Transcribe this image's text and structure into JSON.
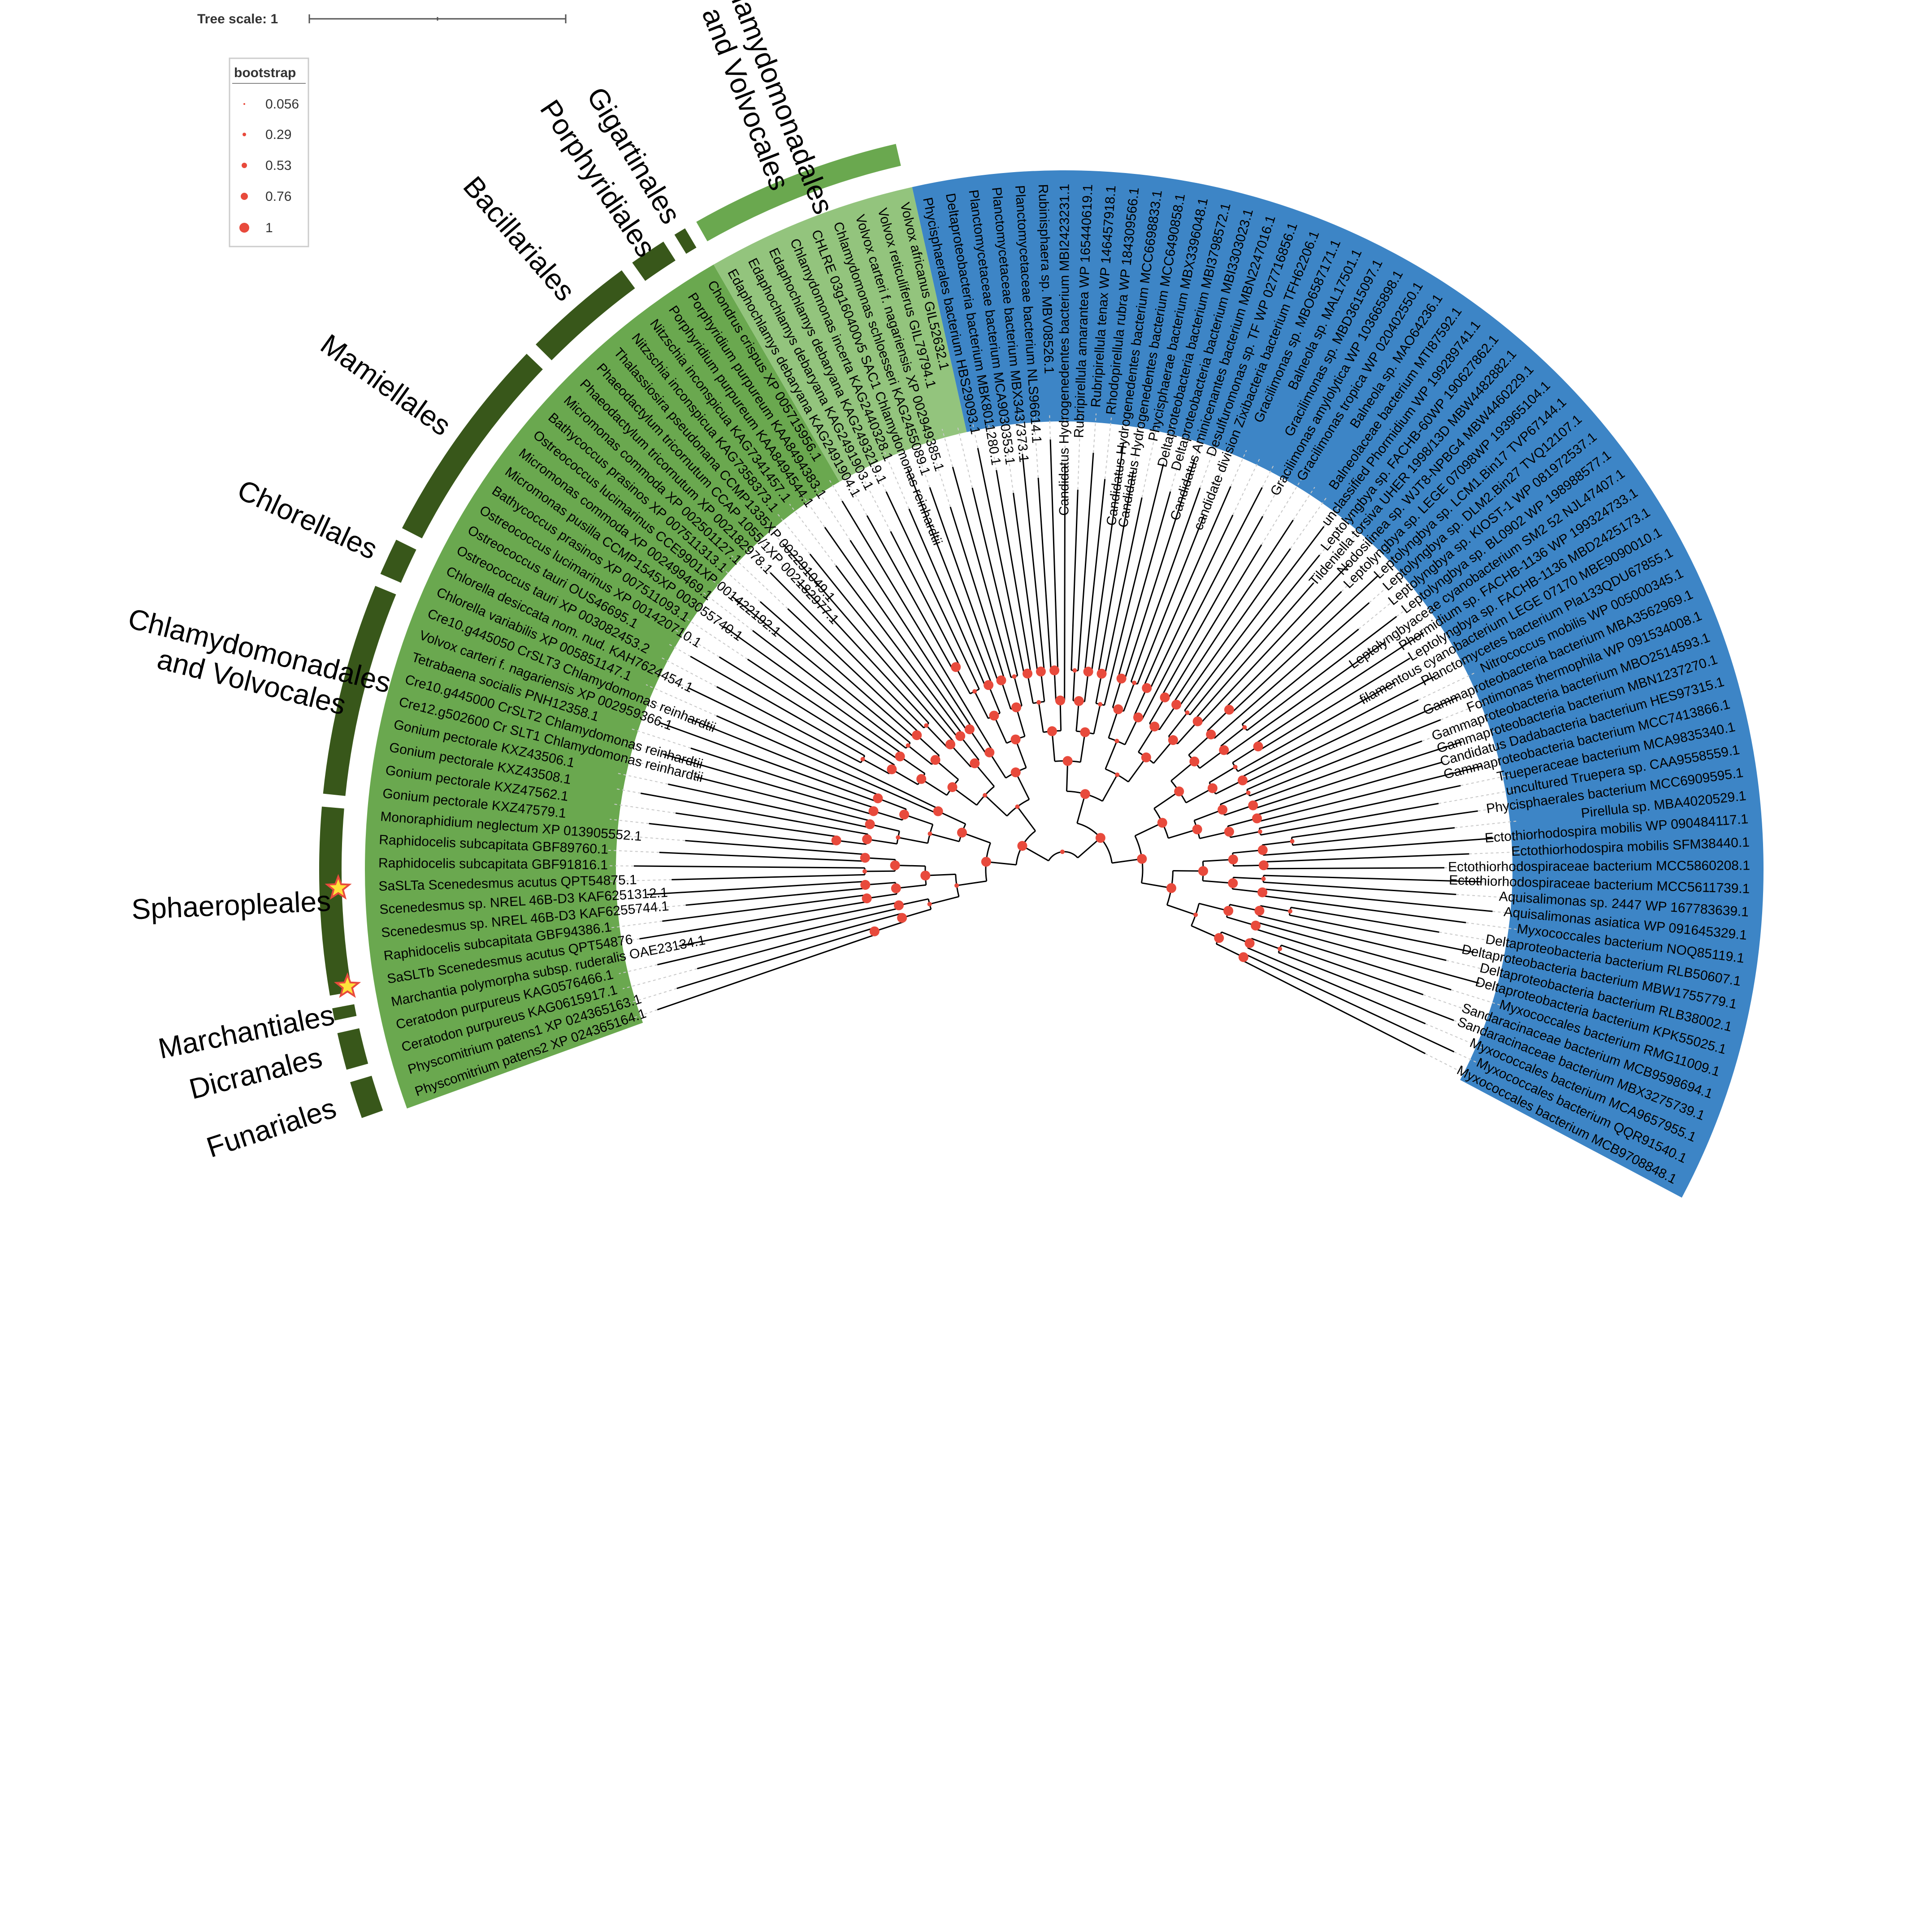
{
  "tree_scale": {
    "label": "Tree scale: 1"
  },
  "legend": {
    "title": "bootstrap",
    "items": [
      {
        "label": "0.056",
        "value": 0.056
      },
      {
        "label": "0.29",
        "value": 0.29
      },
      {
        "label": "0.53",
        "value": 0.53
      },
      {
        "label": "0.76",
        "value": 0.76
      },
      {
        "label": "1",
        "value": 1
      }
    ]
  },
  "colors": {
    "bacteria_band": "#3d85c6",
    "green_band": "#6aa84f",
    "light_green_band": "#93c47d",
    "order_ring_dark": "#38571a",
    "order_ring_light": "#6aa84f",
    "branch": "#000000",
    "bootstrap_dot": "#e84a3c",
    "star_fill": "#ffe23a",
    "star_stroke": "#e84a3c"
  },
  "leaves": [
    "Physcomitrium patens2 XP 024365164.1",
    "Physcomitrium patens1 XP 024365163.1",
    "Ceratodon purpureus KAG0615917.1",
    "Ceratodon purpureus KAG0576466.1",
    "Marchantia polymorpha subsp. ruderalis OAE23134.1",
    "SaSLTb Scenedesmus acutus QPT54876",
    "Raphidocelis subcapitata GBF94386.1",
    "Scenedesmus sp. NREL 46B-D3 KAF6255744.1",
    "Scenedesmus sp. NREL 46B-D3 KAF6251312.1",
    "SaSLTa Scenedesmus acutus QPT54875.1",
    "Raphidocelis subcapitata GBF91816.1",
    "Raphidocelis subcapitata GBF89760.1",
    "Monoraphidium neglectum XP 013905552.1",
    "Gonium pectorale KXZ47579.1",
    "Gonium pectorale KXZ47562.1",
    "Gonium pectorale KXZ43508.1",
    "Gonium pectorale KXZ43506.1",
    "Cre12.g502600 Cr SLT1 Chlamydomonas reinhardtii",
    "Cre10.g445000 CrSLT2 Chlamydomonas reinhardtii",
    "Tetrabaena socialis PNH12358.1",
    "Volvox carteri f. nagariensis XP 002959366.1",
    "Cre10.g445050 CrSLT3 Chlamydomonas reinhardtii",
    "Chlorella variabilis XP 005851147.1",
    "Chlorella desiccata nom. nud. KAH7624454.1",
    "Ostreococcus tauri XP 003082453.2",
    "Ostreococcus tauri OUS46695.1",
    "Ostreococcus lucimarinus XP 001420710.1",
    "Bathycoccus prasinos XP 007511093.1",
    "Micromonas pusilla CCMP1545XP 003055740.1",
    "Micromonas commoda XP 002499469.1",
    "Ostreococcus lucimarinus CCE9901XP 001422192.1",
    "Bathycoccus prasinos XP 007511313.1",
    "Micromonas commoda XP 002501127.1",
    "Phaeodactylum tricornutum XP 002182978.1",
    "Phaeodactylum tricornutum CCAP 1055/1XP 002182977.1",
    "Thalassiosira pseudonana CCMP1335XP 002291049.1",
    "Nitzschia inconspicua KAG7358373.1",
    "Nitzschia inconspicua KAG7341457.1",
    "Porphyridium purpureum KAA8494544.1",
    "Porphyridium purpureum KAA8494383.1",
    "Chondrus crispus XP 005715956.1",
    "Edaphochlamys debaryana KAG2491904.1",
    "Edaphochlamys debaryana KAG2491903.1",
    "Edaphochlamys debaryana KAG2493219.1",
    "Chlamydomonas incerta KAG2440328.1",
    "CHLRE 03g160400v5 SAC1 Chlamydomonas reinhardtii",
    "Chlamydomonas schloesseri KAG2455089.1",
    "Volvox carteri f. nagariensis XP 002949385.1",
    "Volvox reticuliferus GIL79794.1",
    "Volvox africanus GIL52632.1",
    "Phycisphaerales bacterium HBS29093.1",
    "Deltaproteobacteria bacterium MBK8011280.1",
    "Planctomycetaceae bacterium MCA9030353.1",
    "Planctomycetaceae bacterium MBX3437373.1",
    "Planctomycetaceae bacterium NLS96614.1",
    "Rubinisphaera sp. MBV08526.1",
    "Candidatus Hydrogenedentes bacterium MBI2423231.1",
    "Rubripirellula amarantea WP 165440619.1",
    "Rubripirellula tenax WP 146457918.1",
    "Rhodopirellula rubra WP 184309566.1",
    "Candidatus Hydrogenedentes bacterium MCC6698833.1",
    "Candidatus Hydrogenedentes bacterium MCC6490858.1",
    "Phycisphaerae bacterium MBX3396048.1",
    "Deltaproteobacteria bacterium MBI3798572.1",
    "Deltaproteobacteria bacterium MBI3303023.1",
    "Candidatus Aminicenantes bacterium MBN2247016.1",
    "Desulfuromonas sp. TF WP 027716856.1",
    "candidate division Zixibacteria bacterium TFH62206.1",
    "Gracilimonas sp. MBO6587171.1",
    "Balneola sp. MAL17501.1",
    "Gracilimonas sp. MBD3615097.1",
    "Gracilimonas amylolytica WP 103665898.1",
    "Gracilimonas tropica WP 020402550.1",
    "Balneola sp. MAO64236.1",
    "Balneolaceae bacterium MTI87592.1",
    "unclassified Phormidium WP 199289741.1",
    "Leptolyngbya sp. FACHB-60WP 190627862.1",
    "Tildeniella torsiva UHER 1998/13D MBW4482882.1",
    "Nodosilinea sp. WJT8-NPBG4 MBW4460229.1",
    "Leptolyngbya sp. LEGE 07098WP 193965104.1",
    "Leptolyngbya sp. LCM1.Bin17 TVP67144.1",
    "Leptolyngbya sp. DLM2.Bin27 TVQ12107.1",
    "Leptolyngbya sp. KIOST-1 WP 081972537.1",
    "Leptolyngbya sp. BL0902 WP 198988577.1",
    "Leptolyngbyaceae cyanobacterium SM2 52 NJL47407.1",
    "Phormidium sp. FACHB-1136 WP 199324733.1",
    "Leptolyngbya sp. FACHB-1136 MBD2425173.1",
    "filamentous cyanobacterium LEGE 07170 MBE9090010.1",
    "Planctomycetes bacterium Pla133QDU67855.1",
    "Nitrococcus mobilis WP 005000345.1",
    "Gammaproteobacteria bacterium MBA3562969.1",
    "Fontimonas thermophila WP 091534008.1",
    "Gammaproteobacteria bacterium MBO2514593.1",
    "Gammaproteobacteria bacterium MBN1237270.1",
    "Candidatus Dadabacteria bacterium HES97315.1",
    "Gammaproteobacteria bacterium MCC7413866.1",
    "Trueperaceae bacterium MCA9835340.1",
    "uncultured Truepera sp. CAA9558559.1",
    "Phycisphaerales bacterium MCC6909595.1",
    "Pirellula sp. MBA4020529.1",
    "Ectothiorhodospira mobilis WP 090484117.1",
    "Ectothiorhodospira mobilis SFM38440.1",
    "Ectothiorhodospiraceae bacterium MCC5860208.1",
    "Ectothiorhodospiraceae bacterium MCC5611739.1",
    "Aquisalimonas sp. 2447 WP 167783639.1",
    "Aquisalimonas asiatica WP 091645329.1",
    "Myxococcales bacterium NOQ85119.1",
    "Deltaproteobacteria bacterium RLB50607.1",
    "Deltaproteobacteria bacterium MBW1755779.1",
    "Deltaproteobacteria bacterium RLB38002.1",
    "Deltaproteobacteria bacterium KPK55025.1",
    "Myxococcales bacterium RMG11009.1",
    "Sandaracinaceae bacterium MCB9598694.1",
    "Sandaracinaceae bacterium MBX3275739.1",
    "Myxococcales bacterium MCA9657955.1",
    "Myxococcales bacterium QQR91540.1",
    "Myxococcales bacterium MCB9708848.1"
  ],
  "highlighted_leaves": [
    {
      "leaf": "SaSLTb Scenedesmus acutus QPT54876",
      "marker": "star"
    },
    {
      "leaf": "SaSLTa Scenedesmus acutus QPT54875.1",
      "marker": "star"
    }
  ],
  "orders": [
    {
      "label": "Funariales",
      "from_leaf": 0,
      "to_leaf": 1,
      "color": "dark"
    },
    {
      "label": "Dicranales",
      "from_leaf": 2,
      "to_leaf": 3,
      "color": "dark"
    },
    {
      "label": "Marchantiales",
      "from_leaf": 4,
      "to_leaf": 4,
      "color": "dark"
    },
    {
      "label": "Sphaeropleales",
      "from_leaf": 5,
      "to_leaf": 12,
      "color": "dark"
    },
    {
      "label": "Chlamydomonadales\nand Volvocales",
      "from_leaf": 13,
      "to_leaf": 21,
      "color": "dark"
    },
    {
      "label": "Chlorellales",
      "from_leaf": 22,
      "to_leaf": 23,
      "color": "dark"
    },
    {
      "label": "Mamiellales",
      "from_leaf": 24,
      "to_leaf": 32,
      "color": "dark"
    },
    {
      "label": "Bacillariales",
      "from_leaf": 33,
      "to_leaf": 37,
      "color": "dark"
    },
    {
      "label": "Porphyridiales",
      "from_leaf": 38,
      "to_leaf": 39,
      "color": "dark"
    },
    {
      "label": "Gigartinales",
      "from_leaf": 40,
      "to_leaf": 40,
      "color": "dark"
    },
    {
      "label": "Chlamydomonadales\nand Volvocales",
      "from_leaf": 41,
      "to_leaf": 49,
      "color": "light"
    }
  ],
  "bands": [
    {
      "name": "green",
      "from_leaf": 0,
      "to_leaf": 40
    },
    {
      "name": "light_green",
      "from_leaf": 41,
      "to_leaf": 49
    },
    {
      "name": "bacteria",
      "from_leaf": 50,
      "to_leaf": 116
    }
  ]
}
